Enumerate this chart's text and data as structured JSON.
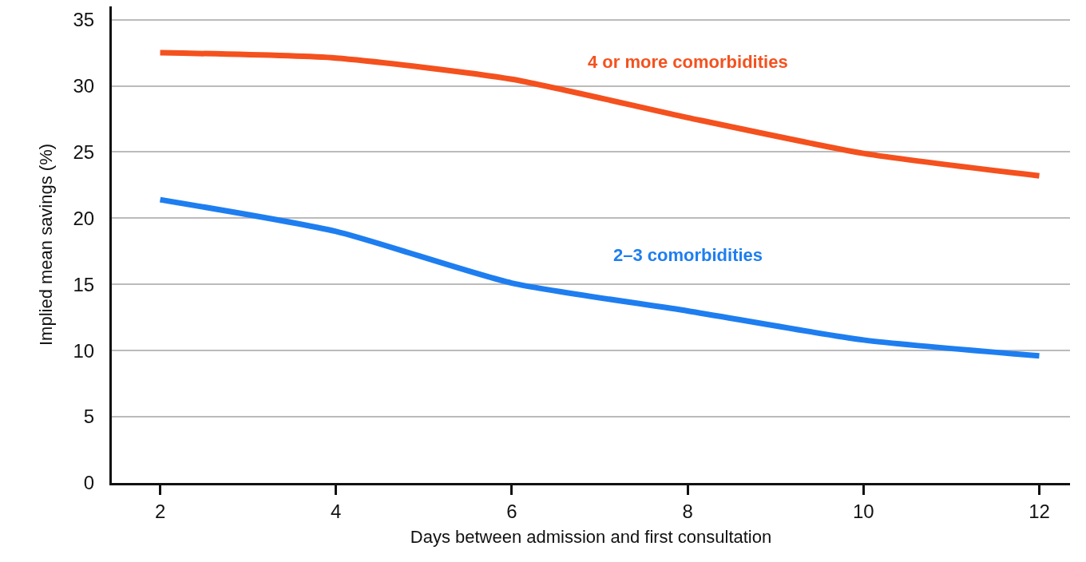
{
  "chart_data": {
    "type": "line",
    "xlabel": "Days between admission and first consultation",
    "ylabel": "Implied mean savings (%)",
    "x": [
      2,
      4,
      6,
      8,
      10,
      12
    ],
    "series": [
      {
        "name": "4 or more comorbidities",
        "color": "#f4511e",
        "values": [
          32.5,
          32.1,
          30.5,
          27.6,
          24.9,
          23.2
        ]
      },
      {
        "name": "2–3 comorbidities",
        "color": "#1e7ef0",
        "values": [
          21.4,
          19.0,
          15.1,
          13.0,
          10.8,
          9.6
        ]
      }
    ],
    "xlim": [
      1.45,
      12.35
    ],
    "xticks": [
      2,
      4,
      6,
      8,
      10,
      12
    ],
    "ylim": [
      0,
      36
    ],
    "yticks": [
      0,
      5,
      10,
      15,
      20,
      25,
      30,
      35
    ],
    "grid": "y",
    "legend": false,
    "marker": "none",
    "line_style": "solid"
  }
}
